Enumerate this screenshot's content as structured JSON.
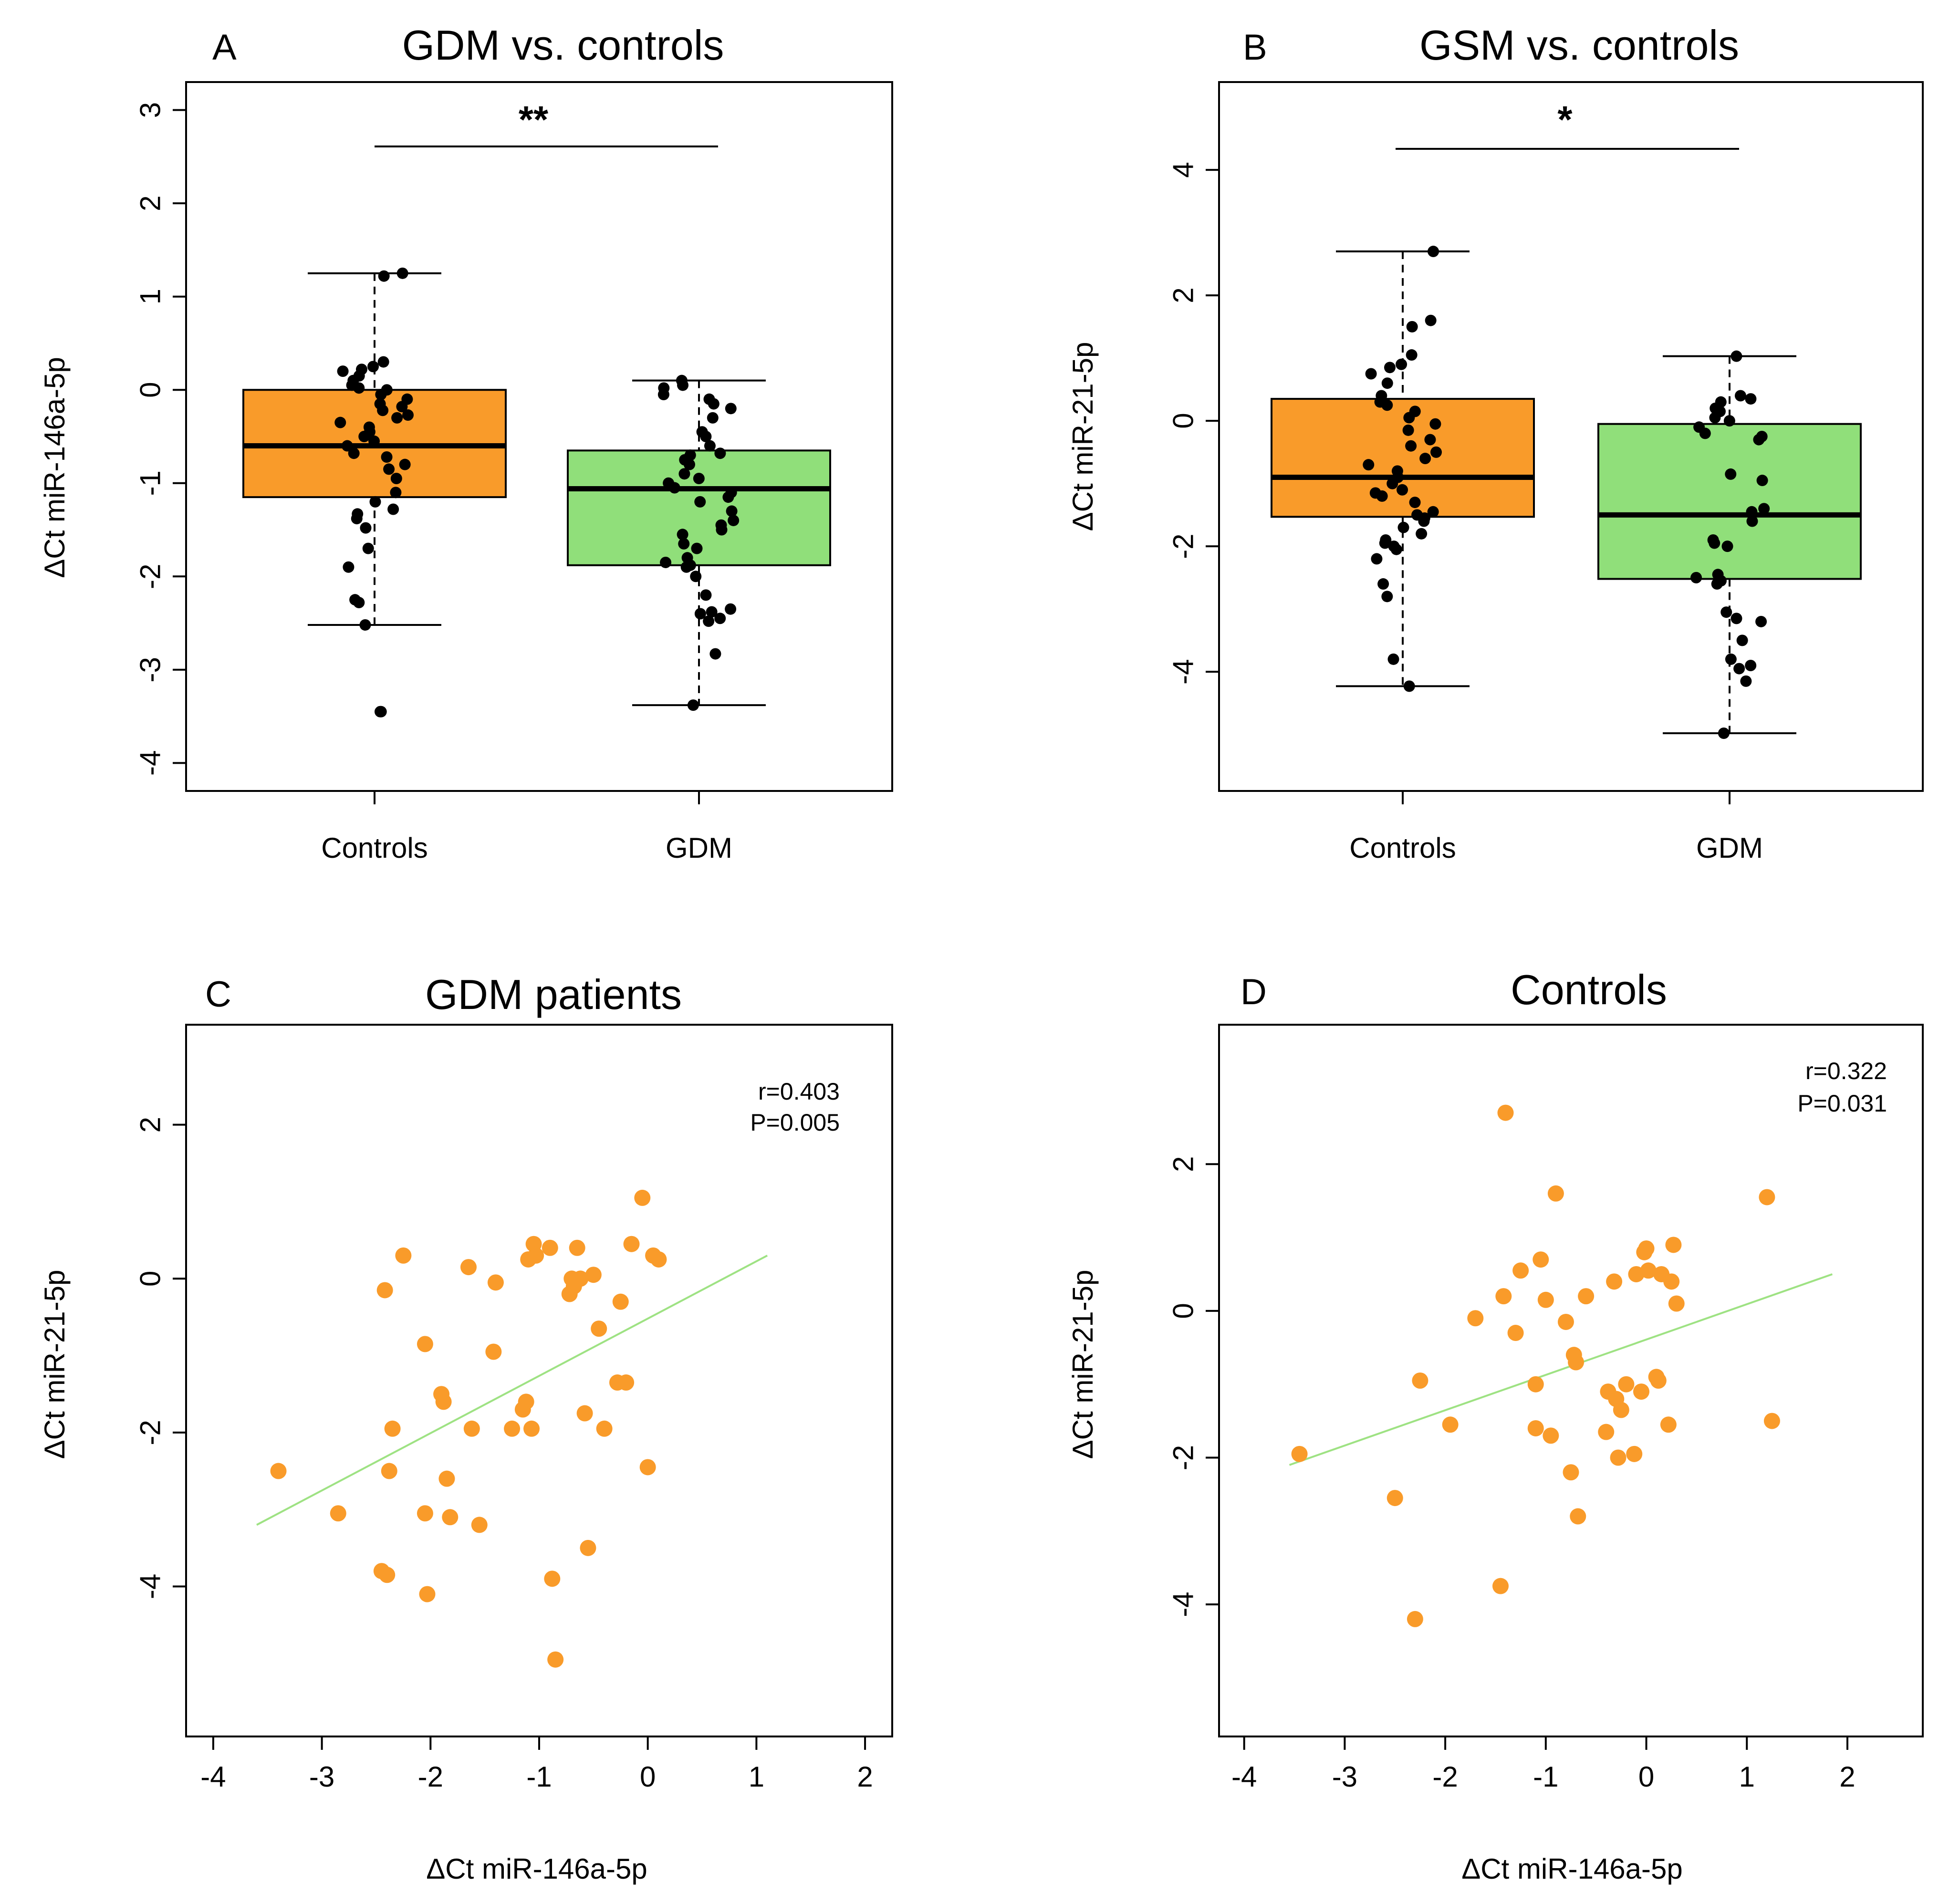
{
  "chart_data": [
    {
      "type": "box",
      "panel_letter": "A",
      "title": "GDM vs. controls",
      "xlabel": "",
      "ylabel": "ΔCt miR-146a-5p",
      "ylim": [
        -4.3,
        3.3
      ],
      "yticks": [
        -4,
        -3,
        -2,
        -1,
        0,
        1,
        2,
        3
      ],
      "categories": [
        "Controls",
        "GDM"
      ],
      "colors": [
        "#f99b2a",
        "#90df7a"
      ],
      "significance": "**",
      "boxes": [
        {
          "name": "Controls",
          "q1": -1.15,
          "median": -0.6,
          "q3": 0.0,
          "whisker_low": -2.52,
          "whisker_high": 1.25,
          "outliers": [
            -3.45
          ]
        },
        {
          "name": "GDM",
          "q1": -1.88,
          "median": -1.06,
          "q3": -0.65,
          "whisker_low": -3.38,
          "whisker_high": 0.1,
          "outliers": []
        }
      ],
      "points": [
        {
          "group": 0,
          "values": [
            -3.45,
            -2.52,
            -2.28,
            -2.25,
            -1.9,
            -1.7,
            -1.48,
            -1.38,
            -1.33,
            -1.28,
            -1.2,
            -1.1,
            -0.95,
            -0.85,
            -0.8,
            -0.72,
            -0.68,
            -0.6,
            -0.55,
            -0.5,
            -0.45,
            -0.4,
            -0.35,
            -0.3,
            -0.27,
            -0.22,
            -0.18,
            -0.15,
            -0.1,
            -0.05,
            0.0,
            0.02,
            0.05,
            0.1,
            0.15,
            0.2,
            0.22,
            0.25,
            0.3,
            1.22,
            1.25
          ]
        },
        {
          "group": 1,
          "values": [
            -3.38,
            -2.83,
            -2.48,
            -2.45,
            -2.4,
            -2.38,
            -2.35,
            -2.2,
            -2.0,
            -1.9,
            -1.88,
            -1.85,
            -1.8,
            -1.7,
            -1.65,
            -1.55,
            -1.5,
            -1.45,
            -1.4,
            -1.3,
            -1.2,
            -1.15,
            -1.1,
            -1.05,
            -1.0,
            -0.95,
            -0.9,
            -0.8,
            -0.75,
            -0.7,
            -0.68,
            -0.6,
            -0.5,
            -0.45,
            -0.3,
            -0.2,
            -0.15,
            -0.1,
            -0.05,
            0.02,
            0.05,
            0.1
          ]
        }
      ]
    },
    {
      "type": "box",
      "panel_letter": "B",
      "title": "GSM vs. controls",
      "xlabel": "",
      "ylabel": "ΔCt miR-21-5p",
      "ylim": [
        -5.9,
        5.4
      ],
      "yticks": [
        -4,
        -2,
        0,
        2,
        4
      ],
      "categories": [
        "Controls",
        "GDM"
      ],
      "colors": [
        "#f99b2a",
        "#90df7a"
      ],
      "significance": "*",
      "boxes": [
        {
          "name": "Controls",
          "q1": -1.53,
          "median": -0.9,
          "q3": 0.35,
          "whisker_low": -4.23,
          "whisker_high": 2.7,
          "outliers": []
        },
        {
          "name": "GDM",
          "q1": -2.52,
          "median": -1.5,
          "q3": -0.05,
          "whisker_low": -4.98,
          "whisker_high": 1.03,
          "outliers": []
        }
      ],
      "points": [
        {
          "group": 0,
          "values": [
            -4.23,
            -3.8,
            -2.8,
            -2.6,
            -2.2,
            -2.05,
            -2.0,
            -1.95,
            -1.9,
            -1.8,
            -1.7,
            -1.6,
            -1.55,
            -1.5,
            -1.45,
            -1.3,
            -1.2,
            -1.15,
            -1.1,
            -1.0,
            -0.9,
            -0.8,
            -0.7,
            -0.6,
            -0.5,
            -0.4,
            -0.3,
            -0.15,
            -0.05,
            0.05,
            0.15,
            0.25,
            0.3,
            0.4,
            0.6,
            0.75,
            0.85,
            0.9,
            1.05,
            1.5,
            1.6,
            2.7
          ]
        },
        {
          "group": 1,
          "values": [
            -4.98,
            -4.15,
            -3.95,
            -3.9,
            -3.8,
            -3.5,
            -3.2,
            -3.15,
            -3.05,
            -2.6,
            -2.55,
            -2.5,
            -2.45,
            -2.0,
            -1.95,
            -1.9,
            -1.6,
            -1.45,
            -1.4,
            -0.95,
            -0.85,
            -0.3,
            -0.25,
            -0.2,
            -0.1,
            0.0,
            0.05,
            0.15,
            0.2,
            0.3,
            0.35,
            0.4,
            1.03
          ]
        }
      ]
    },
    {
      "type": "scatter",
      "panel_letter": "C",
      "title": "GDM patients",
      "xlabel": "ΔCt miR-146a-5p",
      "ylabel": "ΔCt miR-21-5p",
      "xlim": [
        -4.25,
        2.25
      ],
      "ylim": [
        -5.95,
        3.3
      ],
      "xticks": [
        -4,
        -3,
        -2,
        -1,
        0,
        1,
        2
      ],
      "yticks": [
        -4,
        -2,
        0,
        2
      ],
      "point_color": "#f99b2a",
      "line_color": "#9ee283",
      "stats": [
        "r=0.403",
        "P=0.005"
      ],
      "fit_line": {
        "x": [
          -3.6,
          1.1
        ],
        "y": [
          -3.2,
          0.3
        ]
      },
      "x": [
        -3.4,
        -2.85,
        -2.45,
        -2.4,
        -2.42,
        -2.38,
        -2.35,
        -2.25,
        -2.05,
        -2.05,
        -2.03,
        -1.9,
        -1.88,
        -1.85,
        -1.82,
        -1.65,
        -1.62,
        -1.55,
        -1.42,
        -1.4,
        -1.25,
        -1.15,
        -1.12,
        -1.1,
        -1.07,
        -1.05,
        -1.03,
        -0.9,
        -0.88,
        -0.85,
        -0.72,
        -0.7,
        -0.68,
        -0.65,
        -0.62,
        -0.58,
        -0.55,
        -0.5,
        -0.45,
        -0.4,
        -0.28,
        -0.25,
        -0.2,
        -0.15,
        -0.05,
        0.0,
        0.05,
        0.1
      ],
      "y": [
        -2.5,
        -3.05,
        -3.8,
        -3.85,
        -0.15,
        -2.5,
        -1.95,
        0.3,
        -0.85,
        -3.05,
        -4.1,
        -1.5,
        -1.6,
        -2.6,
        -3.1,
        0.15,
        -1.95,
        -3.2,
        -0.95,
        -0.05,
        -1.95,
        -1.7,
        -1.6,
        0.25,
        -1.95,
        0.45,
        0.3,
        0.4,
        -3.9,
        -4.95,
        -0.2,
        0.0,
        -0.1,
        0.4,
        0.0,
        -1.75,
        -3.5,
        0.05,
        -0.65,
        -1.95,
        -1.35,
        -0.3,
        -1.35,
        0.45,
        1.05,
        -2.45,
        0.3,
        0.25
      ]
    },
    {
      "type": "scatter",
      "panel_letter": "D",
      "title": "Controls",
      "xlabel": "ΔCt miR-146a-5p",
      "ylabel": "ΔCt miR-21-5p",
      "xlim": [
        -4.25,
        2.75
      ],
      "ylim": [
        -5.8,
        3.9
      ],
      "xticks": [
        -4,
        -3,
        -2,
        -1,
        0,
        1,
        2
      ],
      "yticks": [
        -4,
        -2,
        0,
        2
      ],
      "point_color": "#f99b2a",
      "line_color": "#9ee283",
      "stats": [
        "r=0.322",
        "P=0.031"
      ],
      "fit_line": {
        "x": [
          -3.55,
          1.85
        ],
        "y": [
          -2.1,
          0.5
        ]
      },
      "x": [
        -3.45,
        -2.5,
        -2.3,
        -2.25,
        -1.95,
        -1.7,
        -1.45,
        -1.42,
        -1.4,
        -1.3,
        -1.25,
        -1.1,
        -1.1,
        -1.05,
        -1.0,
        -0.95,
        -0.9,
        -0.8,
        -0.75,
        -0.72,
        -0.7,
        -0.68,
        -0.6,
        -0.4,
        -0.38,
        -0.32,
        -0.3,
        -0.28,
        -0.25,
        -0.2,
        -0.12,
        -0.1,
        -0.05,
        -0.02,
        0.0,
        0.02,
        0.1,
        0.12,
        0.15,
        0.22,
        0.25,
        0.27,
        0.3,
        1.2,
        1.25
      ],
      "y": [
        -1.95,
        -2.55,
        -4.2,
        -0.95,
        -1.55,
        -0.1,
        -3.75,
        0.2,
        2.7,
        -0.3,
        0.55,
        -1.0,
        -1.6,
        0.7,
        0.15,
        -1.7,
        1.6,
        -0.15,
        -2.2,
        -0.6,
        -0.7,
        -2.8,
        0.2,
        -1.65,
        -1.1,
        0.4,
        -1.2,
        -2.0,
        -1.35,
        -1.0,
        -1.95,
        0.5,
        -1.1,
        0.8,
        0.85,
        0.55,
        -0.9,
        -0.95,
        0.5,
        -1.55,
        0.4,
        0.9,
        0.1,
        1.55,
        -1.5
      ]
    }
  ]
}
